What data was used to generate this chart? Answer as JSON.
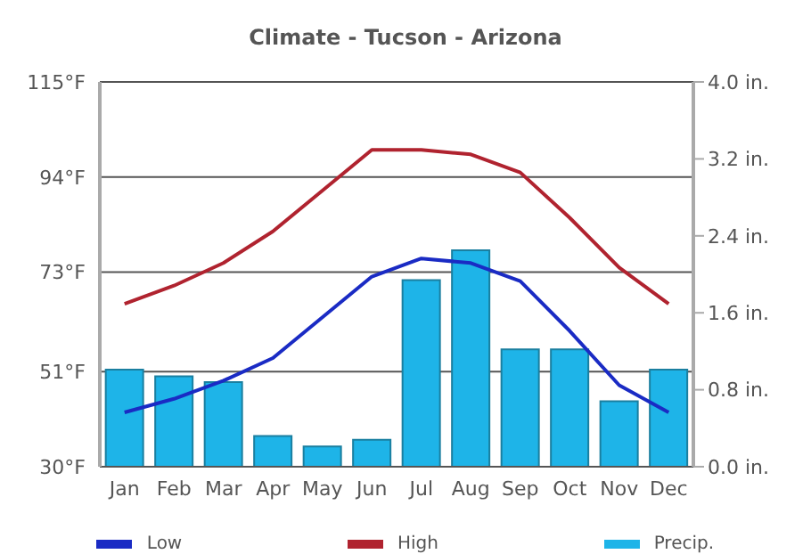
{
  "chart_data": {
    "type": "line",
    "title": "Climate - Tucson - Arizona",
    "categories": [
      "Jan",
      "Feb",
      "Mar",
      "Apr",
      "May",
      "Jun",
      "Jul",
      "Aug",
      "Sep",
      "Oct",
      "Nov",
      "Dec"
    ],
    "series": [
      {
        "name": "Low",
        "color": "#1a2bc4",
        "values": [
          42,
          45,
          49,
          54,
          63,
          72,
          76,
          75,
          71,
          60,
          48,
          42
        ]
      },
      {
        "name": "High",
        "color": "#b0232f",
        "values": [
          66,
          70,
          75,
          82,
          91,
          100,
          100,
          99,
          95,
          85,
          74,
          66
        ]
      },
      {
        "name": "Precip.",
        "type": "bar",
        "axis": "y2",
        "color": "#1eb4e8",
        "values": [
          1.01,
          0.94,
          0.88,
          0.32,
          0.21,
          0.28,
          1.94,
          2.25,
          1.22,
          1.22,
          0.68,
          1.01
        ]
      }
    ],
    "ylim": [
      30,
      115
    ],
    "yticks": [
      {
        "value": 30,
        "label": "30°F"
      },
      {
        "value": 51,
        "label": "51°F"
      },
      {
        "value": 73,
        "label": "73°F"
      },
      {
        "value": 94,
        "label": "94°F"
      },
      {
        "value": 115,
        "label": "115°F"
      }
    ],
    "y2lim": [
      0,
      4
    ],
    "y2ticks": [
      {
        "value": 0,
        "label": "0.0 in."
      },
      {
        "value": 0.8,
        "label": "0.8 in."
      },
      {
        "value": 1.6,
        "label": "1.6 in."
      },
      {
        "value": 2.4,
        "label": "2.4 in."
      },
      {
        "value": 3.2,
        "label": "3.2 in."
      },
      {
        "value": 4,
        "label": "4.0 in."
      }
    ],
    "grid": "y",
    "legend": "bottom",
    "marker": "none",
    "line_style": "solid"
  }
}
